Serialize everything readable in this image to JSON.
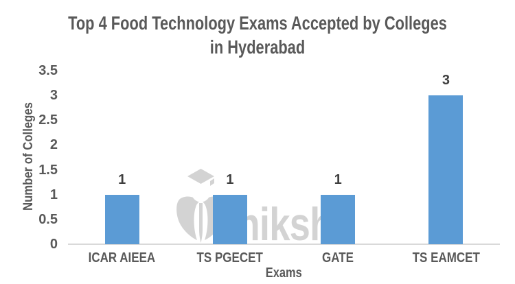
{
  "chart_data": {
    "type": "bar",
    "title": "Top 4 Food Technology Exams Accepted by Colleges in Hyderabad",
    "categories": [
      "ICAR AIEEA",
      "TS PGECET",
      "GATE",
      "TS EAMCET"
    ],
    "values": [
      1,
      1,
      1,
      3
    ],
    "data_labels": [
      "1",
      "1",
      "1",
      "3"
    ],
    "xlabel": "Exams",
    "ylabel": "Number of Colleges",
    "ylim": [
      0,
      3.5
    ],
    "yticks": [
      0,
      0.5,
      1,
      1.5,
      2,
      2.5,
      3,
      3.5
    ],
    "grid": false,
    "legend": "none",
    "bar_color": "#5B9BD5"
  },
  "watermark": {
    "text": "shiksha",
    "logo": "shiksha-graduation-cap-quill-logo",
    "color": "#D3D3D3"
  },
  "colors": {
    "title_text": "#595959",
    "axis_text": "#595959",
    "data_label_text": "#3F3F3F",
    "axis_line": "#D9D9D9",
    "background": "#FFFFFF"
  }
}
